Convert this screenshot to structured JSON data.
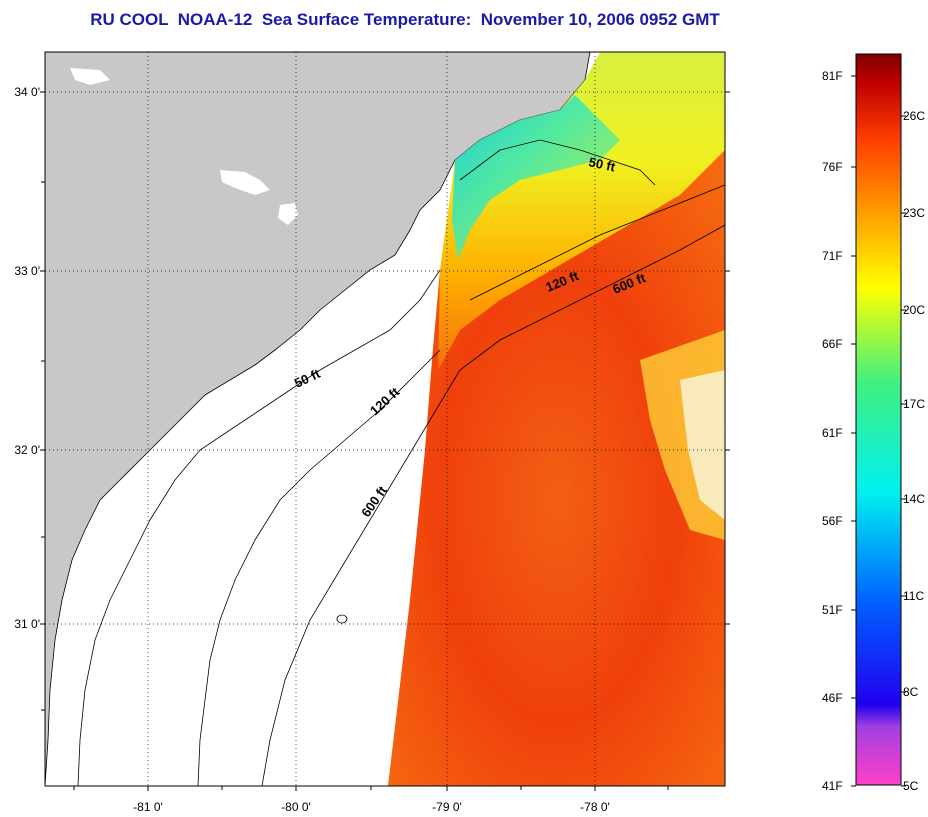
{
  "title": "RU COOL  NOAA-12  Sea Surface Temperature:  November 10, 2006 0952 GMT",
  "map": {
    "lat_labels": [
      "34 0'",
      "33 0'",
      "32 0'",
      "31 0'"
    ],
    "lon_labels": [
      "-81 0'",
      "-80 0'",
      "-79 0'",
      "-78 0'"
    ],
    "isobath_labels": [
      "50 ft",
      "120 ft",
      "600 ft",
      "50 ft",
      "120 ft",
      "600 ft"
    ]
  },
  "colorbar": {
    "fahrenheit": [
      "81F",
      "76F",
      "71F",
      "66F",
      "61F",
      "56F",
      "51F",
      "46F",
      "41F"
    ],
    "celsius": [
      "26C",
      "23C",
      "20C",
      "17C",
      "14C",
      "11C",
      "8C",
      "5C"
    ]
  },
  "colors": {
    "land": "#c8c8c8",
    "title": "#1a1aa8",
    "sst_warm": "#f04a0a",
    "sst_mid": "#ffee00",
    "sst_cool": "#00e0e0"
  }
}
